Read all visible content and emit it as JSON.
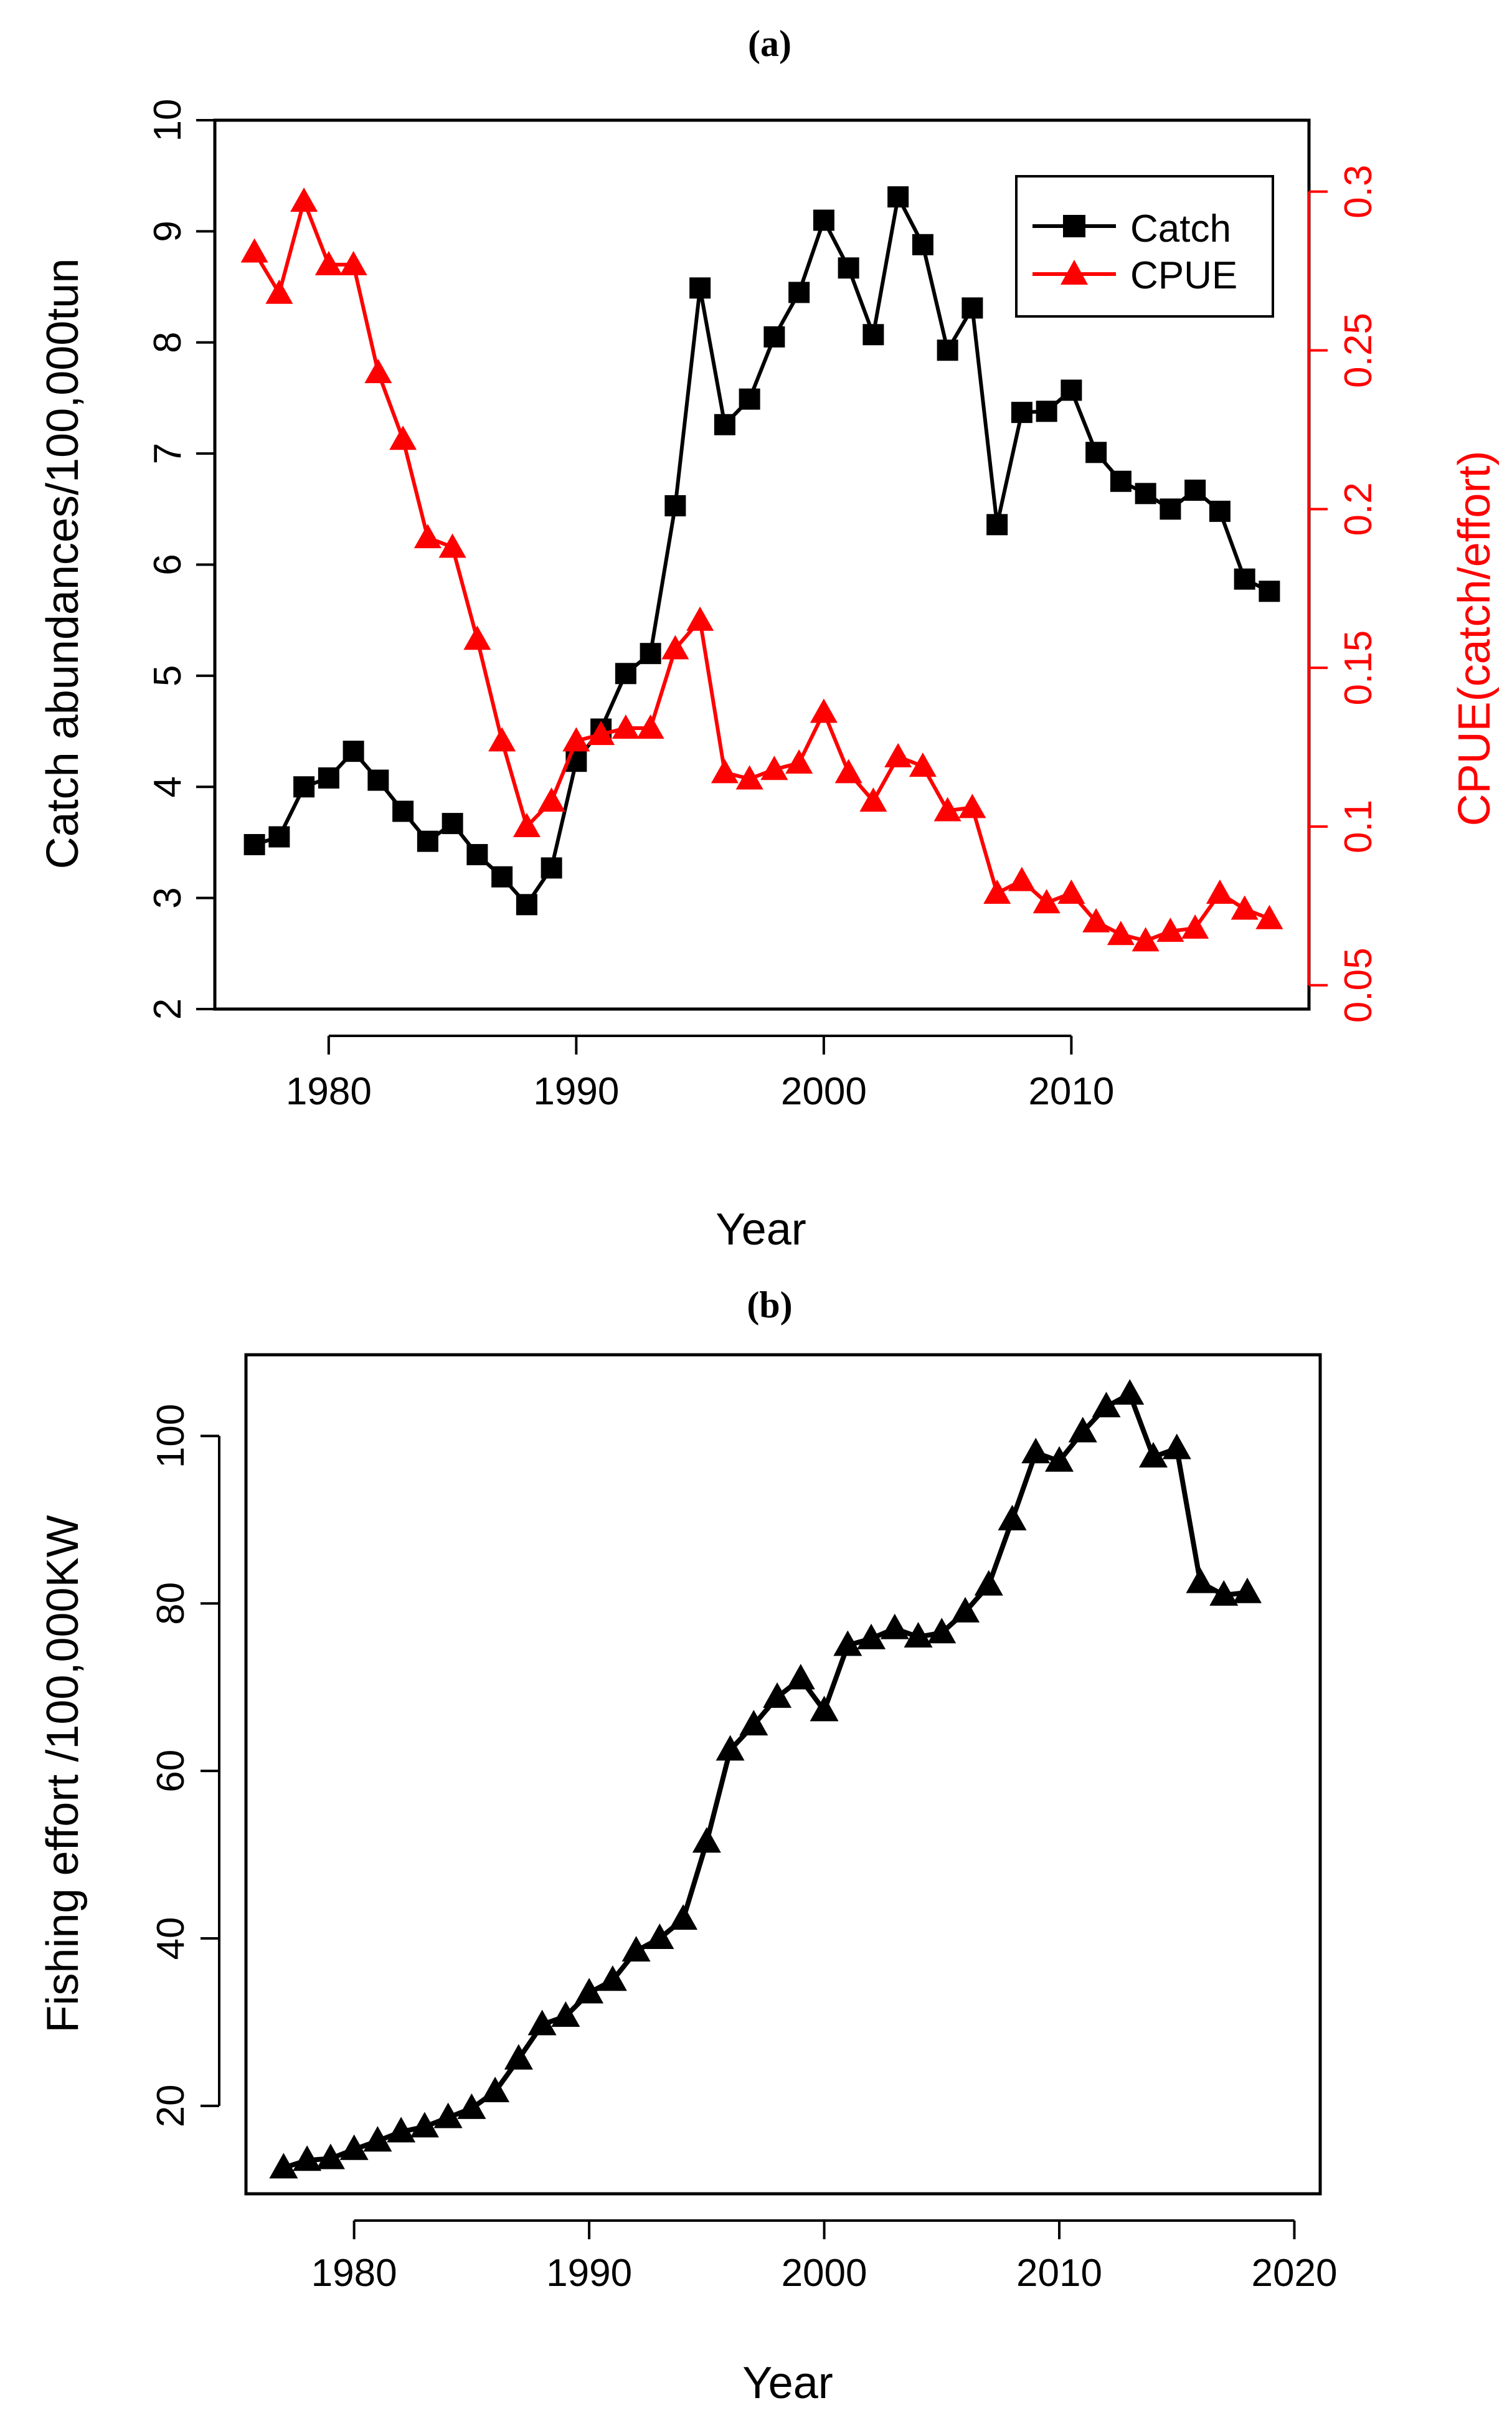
{
  "chart_data": [
    {
      "panel_label": "(a)",
      "type": "line",
      "xlabel": "Year",
      "ylabel": "Catch abundances/100,000tun",
      "ylabel_right": "CPUE(catch/effort)",
      "xlim": [
        1975.4,
        2019.6
      ],
      "ylim": [
        2,
        10
      ],
      "ylim_right": [
        0.0425,
        0.3225
      ],
      "x_ticks": [
        1980,
        1990,
        2000,
        2010
      ],
      "y_ticks": [
        2,
        3,
        4,
        5,
        6,
        7,
        8,
        9,
        10
      ],
      "y_ticks_right": [
        0.05,
        0.1,
        0.15,
        0.2,
        0.25,
        0.3
      ],
      "x_tick_labels": [
        "1980",
        "1990",
        "2000",
        "2010"
      ],
      "y_tick_labels": [
        "2",
        "3",
        "4",
        "5",
        "6",
        "7",
        "8",
        "9",
        "10"
      ],
      "y_tick_labels_right": [
        "0.05",
        "0.1",
        "0.15",
        "0.2",
        "0.25",
        "0.3"
      ],
      "legend_position": "top-right",
      "x": [
        1977,
        1978,
        1979,
        1980,
        1981,
        1982,
        1983,
        1984,
        1985,
        1986,
        1987,
        1988,
        1989,
        1990,
        1991,
        1992,
        1993,
        1994,
        1995,
        1996,
        1997,
        1998,
        1999,
        2000,
        2001,
        2002,
        2003,
        2004,
        2005,
        2006,
        2007,
        2008,
        2009,
        2010,
        2011,
        2012,
        2013,
        2014,
        2015,
        2016,
        2017,
        2018
      ],
      "series": [
        {
          "name": "Catch",
          "axis": "left",
          "color": "#000000",
          "marker": "square",
          "values": [
            3.48,
            3.55,
            4.0,
            4.08,
            4.32,
            4.06,
            3.78,
            3.51,
            3.67,
            3.39,
            3.19,
            2.94,
            3.27,
            4.23,
            4.52,
            5.02,
            5.2,
            6.53,
            8.49,
            7.26,
            7.49,
            8.05,
            8.45,
            9.1,
            8.67,
            8.07,
            9.31,
            8.88,
            7.93,
            8.31,
            6.36,
            7.37,
            7.38,
            7.57,
            7.01,
            6.75,
            6.64,
            6.5,
            6.67,
            6.48,
            5.87,
            5.76
          ]
        },
        {
          "name": "CPUE",
          "axis": "right",
          "color": "#ff0000",
          "marker": "triangle",
          "values": [
            0.281,
            0.268,
            0.297,
            0.277,
            0.277,
            0.243,
            0.222,
            0.191,
            0.188,
            0.159,
            0.127,
            0.1,
            0.108,
            0.127,
            0.129,
            0.131,
            0.131,
            0.156,
            0.165,
            0.117,
            0.115,
            0.118,
            0.12,
            0.136,
            0.117,
            0.108,
            0.122,
            0.119,
            0.105,
            0.106,
            0.079,
            0.083,
            0.076,
            0.079,
            0.07,
            0.066,
            0.064,
            0.067,
            0.068,
            0.079,
            0.074,
            0.071
          ]
        }
      ]
    },
    {
      "panel_label": "(b)",
      "type": "line",
      "xlabel": "Year",
      "ylabel": "Fishing effort /100,000KW",
      "xlim": [
        1975.4,
        2021.1
      ],
      "ylim": [
        9.5,
        109.7
      ],
      "x_ticks": [
        1980,
        1990,
        2000,
        2010,
        2020
      ],
      "y_ticks": [
        20,
        40,
        60,
        80,
        100
      ],
      "x_tick_labels": [
        "1980",
        "1990",
        "2000",
        "2010",
        "2020"
      ],
      "y_tick_labels": [
        "20",
        "40",
        "60",
        "80",
        "100"
      ],
      "x": [
        1977,
        1978,
        1979,
        1980,
        1981,
        1982,
        1983,
        1984,
        1985,
        1986,
        1987,
        1988,
        1989,
        1990,
        1991,
        1992,
        1993,
        1994,
        1995,
        1996,
        1997,
        1998,
        1999,
        2000,
        2001,
        2002,
        2003,
        2004,
        2005,
        2006,
        2007,
        2008,
        2009,
        2010,
        2011,
        2012,
        2013,
        2014,
        2015,
        2016,
        2017,
        2018
      ],
      "series": [
        {
          "name": "Fishing effort",
          "color": "#000000",
          "marker": "triangle",
          "values": [
            12.6,
            13.5,
            13.7,
            14.8,
            15.8,
            16.9,
            17.5,
            18.6,
            19.7,
            21.7,
            25.6,
            29.7,
            30.7,
            33.5,
            35.0,
            38.5,
            40.0,
            42.3,
            51.5,
            62.5,
            65.5,
            68.8,
            71.0,
            67.2,
            75.0,
            75.8,
            77.0,
            76.0,
            76.5,
            79.0,
            82.2,
            90.0,
            98.0,
            97.0,
            100.5,
            103.5,
            105.0,
            97.5,
            98.5,
            82.5,
            81.0,
            81.3
          ]
        }
      ]
    }
  ]
}
